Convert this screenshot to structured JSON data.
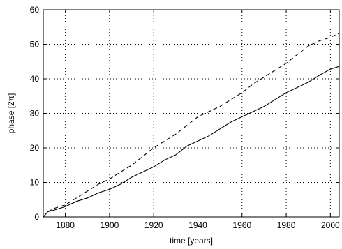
{
  "chart_data": {
    "type": "line",
    "title": "",
    "xlabel": "time [years]",
    "ylabel": "phase [2π]",
    "xlim": [
      1870,
      2004
    ],
    "ylim": [
      0,
      60
    ],
    "xticks": [
      1880,
      1900,
      1920,
      1940,
      1960,
      1980,
      2000
    ],
    "yticks": [
      0,
      10,
      20,
      30,
      40,
      50,
      60
    ],
    "grid": true,
    "legend": false,
    "series": [
      {
        "style": "solid",
        "color": "#000000",
        "x": [
          1870,
          1872,
          1875,
          1880,
          1885,
          1890,
          1895,
          1900,
          1905,
          1910,
          1915,
          1920,
          1925,
          1930,
          1935,
          1940,
          1945,
          1950,
          1955,
          1960,
          1965,
          1970,
          1975,
          1980,
          1985,
          1990,
          1995,
          2000,
          2004
        ],
        "y": [
          0,
          1.5,
          2,
          3,
          4.5,
          5.5,
          7,
          8,
          9.5,
          11.5,
          13,
          14.5,
          16.5,
          18,
          20.5,
          22,
          23.5,
          25.5,
          27.5,
          29,
          30.5,
          32,
          34,
          36,
          37.5,
          39,
          41,
          42.8,
          43.6
        ]
      },
      {
        "style": "dashed",
        "color": "#000000",
        "x": [
          1870,
          1872,
          1875,
          1880,
          1885,
          1890,
          1895,
          1900,
          1905,
          1910,
          1915,
          1920,
          1925,
          1930,
          1935,
          1940,
          1945,
          1950,
          1955,
          1960,
          1965,
          1970,
          1975,
          1980,
          1985,
          1990,
          1995,
          2000,
          2004
        ],
        "y": [
          0,
          1.5,
          2.5,
          3.5,
          5.5,
          7.5,
          9.5,
          11,
          13,
          15,
          17.5,
          20,
          22,
          24,
          26.5,
          29,
          30.5,
          32,
          34,
          36,
          38.5,
          40.5,
          42.5,
          44.5,
          47,
          49.5,
          51,
          52,
          53.2
        ]
      }
    ]
  }
}
